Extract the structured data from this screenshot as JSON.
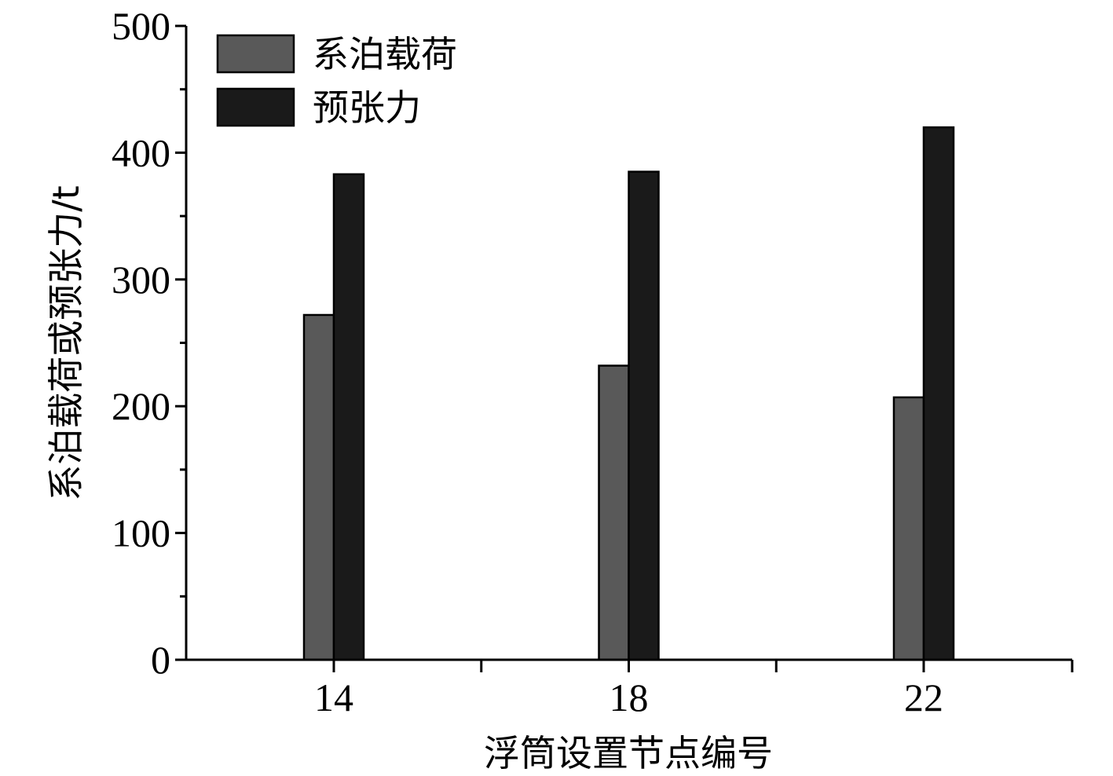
{
  "chart_data": {
    "type": "bar",
    "categories": [
      "14",
      "18",
      "22"
    ],
    "series": [
      {
        "name": "系泊载荷",
        "values": [
          272,
          232,
          207
        ],
        "color": "#595959"
      },
      {
        "name": "预张力",
        "values": [
          383,
          385,
          420
        ],
        "color": "#1a1a1a"
      }
    ],
    "xlabel": "浮筒设置节点编号",
    "ylabel": "系泊载荷或预张力/t",
    "ylim": [
      0,
      500
    ],
    "yticks": [
      "0",
      "100",
      "200",
      "300",
      "400",
      "500"
    ],
    "legend_position": "top-left",
    "grid": false
  }
}
